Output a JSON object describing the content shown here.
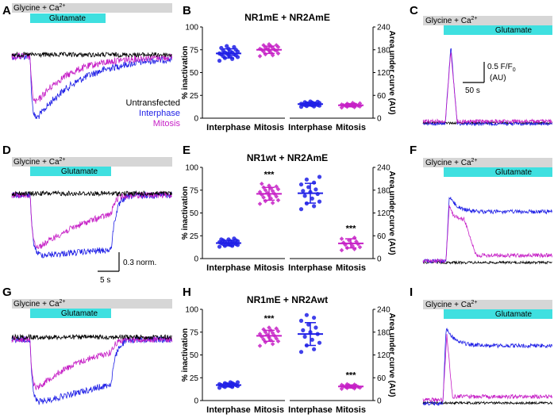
{
  "figure": {
    "panels": [
      "A",
      "B",
      "C",
      "D",
      "E",
      "F",
      "G",
      "H",
      "I"
    ],
    "trace_labels": {
      "gly": "Glycine + Ca",
      "ca_sup": "2+",
      "glu": "Glutamate"
    },
    "legend": {
      "untransfected": "Untransfected",
      "interphase": "Interphase",
      "mitosis": "Mitosis"
    },
    "scalebar_D": {
      "v": "0.3 norm.",
      "t": "5 s"
    },
    "scalebar_C": {
      "v": "0.5 F/F",
      "v_sub": "0",
      "v2": "(AU)",
      "t": "50 s"
    },
    "colors": {
      "black": "#000000",
      "blue": "#1f1fe6",
      "magenta": "#c61fc6",
      "cyan": "#3fe0e0",
      "gray": "#d6d6d6"
    }
  },
  "chart_data": [
    {
      "type": "scatter",
      "panel": "B",
      "title": "NR1mE + NR2AmE",
      "ylabel_left": "% inactivation",
      "ylabel_right": "Area under curve (AU)",
      "ylim_left": [
        0,
        100
      ],
      "yticks_left": [
        0,
        25,
        50,
        75,
        100
      ],
      "ylim_right": [
        0,
        240
      ],
      "yticks_right": [
        0,
        60,
        120,
        180,
        240
      ],
      "categories": [
        "Interphase",
        "Mitosis",
        "Interphase",
        "Mitosis"
      ],
      "series": [
        {
          "name": "Interphase % inactivation",
          "axis": "left",
          "color": "#1f1fe6",
          "marker": "circle",
          "mean": 71,
          "sd": 5,
          "values": [
            63,
            65,
            66,
            67,
            68,
            68,
            69,
            69,
            70,
            70,
            71,
            71,
            72,
            72,
            73,
            73,
            74,
            75,
            76,
            77,
            78,
            79
          ]
        },
        {
          "name": "Mitosis % inactivation",
          "axis": "left",
          "color": "#c61fc6",
          "marker": "diamond",
          "mean": 75,
          "sd": 4,
          "values": [
            68,
            69,
            70,
            71,
            72,
            73,
            74,
            74,
            75,
            75,
            76,
            76,
            77,
            77,
            78,
            79,
            80,
            80,
            81
          ]
        },
        {
          "name": "Interphase AUC",
          "axis": "right",
          "color": "#1f1fe6",
          "marker": "circle",
          "mean": 37,
          "sd": 5,
          "values": [
            30,
            31,
            32,
            33,
            34,
            35,
            35,
            36,
            36,
            37,
            37,
            38,
            38,
            39,
            40,
            41,
            42,
            43,
            44
          ]
        },
        {
          "name": "Mitosis AUC",
          "axis": "right",
          "color": "#c61fc6",
          "marker": "diamond",
          "mean": 34,
          "sd": 4,
          "values": [
            28,
            29,
            30,
            31,
            32,
            33,
            33,
            34,
            34,
            35,
            35,
            36,
            37,
            38,
            39,
            40
          ]
        }
      ],
      "annotations": []
    },
    {
      "type": "scatter",
      "panel": "E",
      "title": "NR1wt + NR2AmE",
      "ylabel_left": "% inactivation",
      "ylabel_right": "Area under curve (AU)",
      "ylim_left": [
        0,
        100
      ],
      "yticks_left": [
        0,
        25,
        50,
        75,
        100
      ],
      "ylim_right": [
        0,
        240
      ],
      "yticks_right": [
        0,
        60,
        120,
        180,
        240
      ],
      "categories": [
        "Interphase",
        "Mitosis",
        "Interphase",
        "Mitosis"
      ],
      "series": [
        {
          "name": "Interphase % inactivation",
          "axis": "left",
          "color": "#1f1fe6",
          "marker": "circle",
          "mean": 17,
          "sd": 3,
          "values": [
            13,
            14,
            14,
            15,
            15,
            16,
            16,
            16,
            17,
            17,
            17,
            18,
            18,
            18,
            19,
            19,
            20,
            20,
            21,
            21,
            22
          ]
        },
        {
          "name": "Mitosis % inactivation",
          "axis": "left",
          "color": "#c61fc6",
          "marker": "diamond",
          "mean": 71,
          "sd": 7,
          "values": [
            60,
            61,
            63,
            64,
            66,
            67,
            68,
            69,
            70,
            71,
            72,
            73,
            74,
            75,
            76,
            77,
            78,
            79,
            80,
            82
          ]
        },
        {
          "name": "Interphase AUC",
          "axis": "right",
          "color": "#1f1fe6",
          "marker": "circle",
          "mean": 172,
          "sd": 26,
          "values": [
            130,
            138,
            145,
            150,
            158,
            165,
            170,
            175,
            178,
            182,
            188,
            195,
            200,
            208,
            215
          ]
        },
        {
          "name": "Mitosis AUC",
          "axis": "right",
          "color": "#c61fc6",
          "marker": "diamond",
          "mean": 40,
          "sd": 12,
          "values": [
            22,
            25,
            28,
            30,
            33,
            36,
            38,
            40,
            42,
            45,
            48,
            52,
            55
          ]
        }
      ],
      "annotations": [
        "***",
        "***"
      ]
    },
    {
      "type": "scatter",
      "panel": "H",
      "title": "NR1mE + NR2Awt",
      "ylabel_left": "% inactivation",
      "ylabel_right": "Area under curve (AU)",
      "ylim_left": [
        0,
        100
      ],
      "yticks_left": [
        0,
        25,
        50,
        75,
        100
      ],
      "ylim_right": [
        0,
        240
      ],
      "yticks_right": [
        0,
        60,
        120,
        180,
        240
      ],
      "categories": [
        "Interphase",
        "Mitosis",
        "Interphase",
        "Mitosis"
      ],
      "series": [
        {
          "name": "Interphase % inactivation",
          "axis": "left",
          "color": "#1f1fe6",
          "marker": "circle",
          "mean": 17,
          "sd": 2,
          "values": [
            14,
            15,
            15,
            16,
            16,
            16,
            17,
            17,
            17,
            18,
            18,
            18,
            19,
            19,
            20,
            20
          ]
        },
        {
          "name": "Mitosis % inactivation",
          "axis": "left",
          "color": "#c61fc6",
          "marker": "diamond",
          "mean": 71,
          "sd": 6,
          "values": [
            60,
            62,
            64,
            65,
            66,
            67,
            68,
            69,
            70,
            71,
            72,
            73,
            74,
            75,
            76,
            77,
            78,
            79,
            80
          ]
        },
        {
          "name": "Interphase AUC",
          "axis": "right",
          "color": "#1f1fe6",
          "marker": "circle",
          "mean": 175,
          "sd": 30,
          "values": [
            128,
            135,
            145,
            152,
            160,
            168,
            175,
            180,
            185,
            192,
            200,
            210,
            218,
            225
          ]
        },
        {
          "name": "Mitosis AUC",
          "axis": "right",
          "color": "#c61fc6",
          "marker": "diamond",
          "mean": 37,
          "sd": 4,
          "values": [
            31,
            32,
            33,
            34,
            35,
            36,
            36,
            37,
            38,
            39,
            40,
            41,
            42,
            43
          ]
        }
      ],
      "annotations": [
        "***",
        "***"
      ]
    }
  ]
}
